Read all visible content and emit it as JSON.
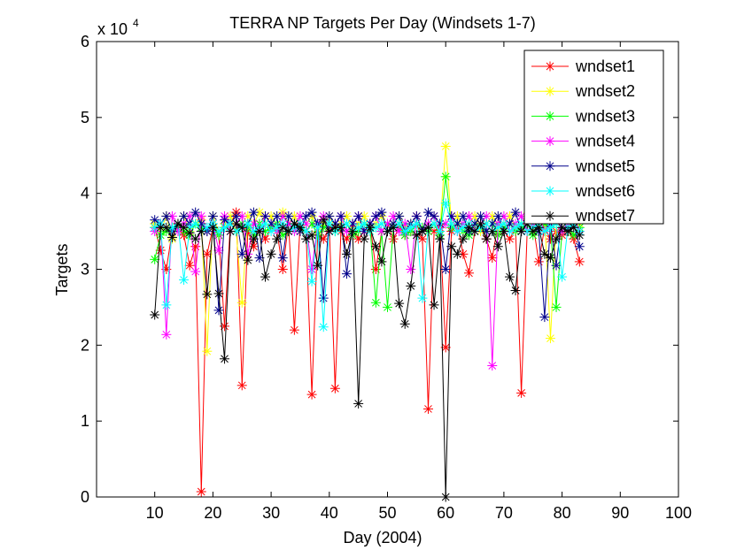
{
  "chart_data": {
    "type": "line",
    "title": "TERRA NP Targets Per Day (Windsets 1-7)",
    "xlabel": "Day (2004)",
    "ylabel": "Targets",
    "y_exponent_label": "x 10",
    "y_exponent_power": "4",
    "xlim": [
      0,
      100
    ],
    "ylim": [
      0,
      6
    ],
    "x_ticks": [
      10,
      20,
      30,
      40,
      50,
      60,
      70,
      80,
      90,
      100
    ],
    "y_ticks": [
      0,
      1,
      2,
      3,
      4,
      5,
      6
    ],
    "grid": false,
    "legend_position": "top-right",
    "marker": "asterisk",
    "series": [
      {
        "name": "wndset1",
        "color": "#ff0000",
        "x": [
          10,
          11,
          12,
          13,
          14,
          15,
          16,
          17,
          18,
          19,
          20,
          21,
          22,
          23,
          24,
          25,
          26,
          27,
          28,
          29,
          30,
          31,
          32,
          33,
          34,
          35,
          36,
          37,
          38,
          39,
          40,
          41,
          42,
          43,
          44,
          45,
          46,
          47,
          48,
          49,
          50,
          51,
          52,
          53,
          54,
          55,
          56,
          57,
          58,
          59,
          60,
          61,
          62,
          63,
          64,
          65,
          66,
          67,
          68,
          69,
          70,
          71,
          72,
          73,
          74,
          75,
          76,
          77,
          78,
          79,
          80,
          81,
          82,
          83
        ],
        "y": [
          3.55,
          3.25,
          3.0,
          3.5,
          3.6,
          3.45,
          3.05,
          3.3,
          0.07,
          3.2,
          3.55,
          3.45,
          2.25,
          3.6,
          3.75,
          1.47,
          3.5,
          3.3,
          3.6,
          3.4,
          3.55,
          3.5,
          3.0,
          3.6,
          2.2,
          3.6,
          3.5,
          1.35,
          3.45,
          3.4,
          3.55,
          1.43,
          3.5,
          3.4,
          3.6,
          3.4,
          3.5,
          3.6,
          3.0,
          3.5,
          3.6,
          3.4,
          3.55,
          3.45,
          3.5,
          3.6,
          3.4,
          1.16,
          3.5,
          3.55,
          1.97,
          3.5,
          3.6,
          3.2,
          2.95,
          3.5,
          3.55,
          3.4,
          3.15,
          3.6,
          3.5,
          3.4,
          3.55,
          1.37,
          3.5,
          3.6,
          3.1,
          3.55,
          3.4,
          3.5,
          3.45,
          3.55,
          3.4,
          3.1
        ]
      },
      {
        "name": "wndset2",
        "color": "#ffff00",
        "x": [
          10,
          11,
          12,
          13,
          14,
          15,
          16,
          17,
          18,
          19,
          20,
          21,
          22,
          23,
          24,
          25,
          26,
          27,
          28,
          29,
          30,
          31,
          32,
          33,
          34,
          35,
          36,
          37,
          38,
          39,
          40,
          41,
          42,
          43,
          44,
          45,
          46,
          47,
          48,
          49,
          50,
          51,
          52,
          53,
          54,
          55,
          56,
          57,
          58,
          59,
          60,
          61,
          62,
          63,
          64,
          65,
          66,
          67,
          68,
          69,
          70,
          71,
          72,
          73,
          74,
          75,
          76,
          77,
          78,
          79,
          80,
          81,
          82,
          83
        ],
        "y": [
          3.6,
          3.5,
          3.7,
          3.4,
          3.6,
          3.7,
          3.5,
          3.6,
          3.65,
          1.92,
          3.7,
          3.5,
          3.6,
          3.7,
          3.5,
          2.56,
          3.7,
          3.6,
          3.75,
          3.6,
          3.7,
          3.5,
          3.75,
          3.6,
          3.7,
          3.5,
          3.6,
          3.7,
          3.5,
          3.6,
          3.7,
          3.55,
          3.6,
          3.7,
          3.5,
          3.6,
          3.7,
          3.5,
          3.6,
          3.7,
          3.5,
          3.6,
          3.7,
          3.55,
          3.6,
          3.7,
          3.5,
          3.6,
          3.7,
          3.5,
          4.62,
          3.6,
          3.7,
          3.5,
          3.6,
          3.7,
          3.5,
          3.6,
          3.7,
          3.5,
          3.6,
          3.7,
          3.55,
          3.6,
          3.7,
          3.5,
          3.6,
          3.7,
          2.09,
          3.6,
          3.7,
          3.5,
          3.6,
          3.6
        ]
      },
      {
        "name": "wndset3",
        "color": "#00ff00",
        "x": [
          10,
          11,
          12,
          13,
          14,
          15,
          16,
          17,
          18,
          19,
          20,
          21,
          22,
          23,
          24,
          25,
          26,
          27,
          28,
          29,
          30,
          31,
          32,
          33,
          34,
          35,
          36,
          37,
          38,
          39,
          40,
          41,
          42,
          43,
          44,
          45,
          46,
          47,
          48,
          49,
          50,
          51,
          52,
          53,
          54,
          55,
          56,
          57,
          58,
          59,
          60,
          61,
          62,
          63,
          64,
          65,
          66,
          67,
          68,
          69,
          70,
          71,
          72,
          73,
          74,
          75,
          76,
          77,
          78,
          79,
          80,
          81,
          82,
          83
        ],
        "y": [
          3.13,
          3.45,
          3.5,
          3.55,
          3.6,
          3.5,
          3.45,
          3.6,
          3.55,
          3.5,
          3.6,
          3.45,
          3.55,
          3.6,
          3.5,
          3.6,
          3.55,
          3.45,
          3.6,
          3.5,
          3.55,
          3.6,
          3.45,
          3.5,
          3.6,
          3.55,
          3.5,
          3.6,
          3.45,
          3.55,
          3.6,
          3.5,
          3.55,
          3.6,
          3.45,
          3.5,
          3.6,
          3.55,
          2.56,
          3.5,
          2.5,
          3.55,
          3.6,
          3.45,
          3.5,
          3.6,
          3.55,
          3.5,
          3.6,
          3.45,
          4.22,
          3.55,
          3.6,
          3.5,
          3.45,
          3.6,
          3.55,
          3.5,
          3.6,
          3.45,
          3.55,
          3.6,
          3.5,
          3.55,
          3.6,
          3.45,
          3.5,
          3.6,
          3.55,
          2.5,
          3.5,
          3.6,
          3.45,
          3.55
        ]
      },
      {
        "name": "wndset4",
        "color": "#ff00ff",
        "x": [
          10,
          11,
          12,
          13,
          14,
          15,
          16,
          17,
          18,
          19,
          20,
          21,
          22,
          23,
          24,
          25,
          26,
          27,
          28,
          29,
          30,
          31,
          32,
          33,
          34,
          35,
          36,
          37,
          38,
          39,
          40,
          41,
          42,
          43,
          44,
          45,
          46,
          47,
          48,
          49,
          50,
          51,
          52,
          53,
          54,
          55,
          56,
          57,
          58,
          59,
          60,
          61,
          62,
          63,
          64,
          65,
          66,
          67,
          68,
          69,
          70,
          71,
          72,
          73,
          74,
          75,
          76,
          77,
          78,
          79,
          80,
          81,
          82,
          83
        ],
        "y": [
          3.5,
          3.6,
          2.14,
          3.7,
          3.5,
          3.6,
          3.7,
          2.97,
          3.7,
          3.5,
          3.6,
          3.25,
          3.7,
          3.5,
          3.6,
          3.7,
          3.2,
          3.6,
          3.5,
          3.7,
          3.6,
          3.5,
          3.7,
          3.6,
          3.5,
          3.7,
          3.6,
          3.0,
          3.6,
          3.7,
          3.5,
          3.6,
          3.7,
          3.5,
          3.6,
          3.7,
          3.5,
          3.6,
          3.7,
          3.5,
          3.6,
          3.7,
          3.5,
          3.6,
          3.0,
          3.7,
          3.5,
          3.6,
          3.7,
          3.5,
          3.6,
          3.7,
          3.5,
          3.6,
          3.7,
          3.5,
          3.6,
          3.7,
          1.73,
          3.6,
          3.7,
          3.5,
          3.6,
          3.7,
          3.5,
          3.6,
          3.7,
          3.5,
          3.6,
          3.7,
          3.5,
          3.6,
          3.7,
          3.5
        ]
      },
      {
        "name": "wndset5",
        "color": "#00008b",
        "x": [
          10,
          11,
          12,
          13,
          14,
          15,
          16,
          17,
          18,
          19,
          20,
          21,
          22,
          23,
          24,
          25,
          26,
          27,
          28,
          29,
          30,
          31,
          32,
          33,
          34,
          35,
          36,
          37,
          38,
          39,
          40,
          41,
          42,
          43,
          44,
          45,
          46,
          47,
          48,
          49,
          50,
          51,
          52,
          53,
          54,
          55,
          56,
          57,
          58,
          59,
          60,
          61,
          62,
          63,
          64,
          65,
          66,
          67,
          68,
          69,
          70,
          71,
          72,
          73,
          74,
          75,
          76,
          77,
          78,
          79,
          80,
          81,
          82,
          83
        ],
        "y": [
          3.65,
          3.6,
          3.7,
          3.5,
          3.6,
          3.7,
          3.6,
          3.75,
          3.6,
          3.5,
          3.7,
          2.46,
          3.65,
          3.6,
          3.7,
          3.2,
          3.6,
          3.75,
          3.15,
          3.7,
          3.6,
          3.7,
          3.15,
          3.7,
          3.6,
          3.5,
          3.7,
          3.75,
          3.6,
          2.62,
          3.7,
          3.6,
          3.7,
          2.94,
          3.6,
          3.7,
          3.5,
          3.6,
          3.7,
          3.75,
          3.5,
          3.6,
          3.7,
          3.5,
          3.6,
          3.7,
          3.5,
          3.75,
          3.7,
          3.6,
          3.0,
          3.7,
          3.6,
          3.7,
          3.5,
          3.6,
          3.7,
          3.5,
          3.6,
          3.7,
          3.5,
          3.6,
          3.75,
          3.5,
          3.6,
          3.7,
          3.5,
          2.37,
          3.6,
          3.05,
          3.7,
          3.5,
          3.6,
          3.3
        ]
      },
      {
        "name": "wndset6",
        "color": "#00ffff",
        "x": [
          10,
          11,
          12,
          13,
          14,
          15,
          16,
          17,
          18,
          19,
          20,
          21,
          22,
          23,
          24,
          25,
          26,
          27,
          28,
          29,
          30,
          31,
          32,
          33,
          34,
          35,
          36,
          37,
          38,
          39,
          40,
          41,
          42,
          43,
          44,
          45,
          46,
          47,
          48,
          49,
          50,
          51,
          52,
          53,
          54,
          55,
          56,
          57,
          58,
          59,
          60,
          61,
          62,
          63,
          64,
          65,
          66,
          67,
          68,
          69,
          70,
          71,
          72,
          73,
          74,
          75,
          76,
          77,
          78,
          79,
          80,
          81,
          82,
          83
        ],
        "y": [
          3.55,
          3.6,
          2.53,
          3.55,
          3.6,
          2.86,
          3.55,
          3.6,
          3.5,
          3.55,
          3.6,
          3.5,
          3.55,
          3.6,
          3.5,
          3.55,
          3.6,
          3.5,
          3.55,
          3.6,
          3.5,
          3.55,
          3.6,
          3.5,
          3.55,
          3.6,
          3.5,
          2.84,
          3.55,
          2.24,
          3.6,
          3.5,
          3.55,
          3.6,
          3.5,
          3.55,
          3.6,
          3.5,
          3.55,
          3.6,
          3.5,
          3.55,
          3.6,
          3.5,
          3.55,
          3.6,
          2.62,
          3.55,
          3.6,
          3.5,
          3.87,
          3.6,
          3.5,
          3.55,
          3.6,
          3.5,
          3.55,
          3.6,
          3.5,
          3.55,
          3.6,
          3.5,
          3.55,
          3.6,
          3.5,
          3.55,
          3.6,
          3.5,
          3.55,
          3.6,
          2.9,
          3.55,
          3.6,
          3.5
        ]
      },
      {
        "name": "wndset7",
        "color": "#000000",
        "x": [
          10,
          11,
          12,
          13,
          14,
          15,
          16,
          17,
          18,
          19,
          20,
          21,
          22,
          23,
          24,
          25,
          26,
          27,
          28,
          29,
          30,
          31,
          32,
          33,
          34,
          35,
          36,
          37,
          38,
          39,
          40,
          41,
          42,
          43,
          44,
          45,
          46,
          47,
          48,
          49,
          50,
          51,
          52,
          53,
          54,
          55,
          56,
          57,
          58,
          59,
          60,
          61,
          62,
          63,
          64,
          65,
          66,
          67,
          68,
          69,
          70,
          71,
          72,
          73,
          74,
          75,
          76,
          77,
          78,
          79,
          80,
          81,
          82,
          83
        ],
        "y": [
          2.4,
          3.55,
          3.55,
          3.42,
          3.6,
          3.55,
          3.48,
          3.4,
          3.5,
          2.67,
          3.55,
          2.68,
          1.82,
          3.5,
          3.6,
          3.55,
          3.12,
          3.4,
          3.5,
          2.9,
          3.2,
          3.4,
          3.55,
          3.5,
          3.6,
          3.55,
          3.4,
          3.45,
          3.05,
          3.65,
          3.5,
          3.55,
          3.55,
          3.2,
          3.5,
          1.23,
          3.4,
          3.55,
          3.3,
          3.1,
          3.5,
          3.55,
          2.55,
          2.28,
          2.78,
          3.45,
          3.5,
          3.55,
          2.53,
          3.4,
          0.0,
          3.3,
          3.2,
          3.4,
          3.55,
          3.5,
          3.6,
          3.4,
          3.5,
          3.3,
          3.5,
          2.9,
          2.72,
          3.5,
          3.6,
          3.5,
          3.55,
          3.2,
          3.15,
          3.4,
          3.55,
          3.5,
          3.55,
          3.45
        ]
      }
    ]
  }
}
